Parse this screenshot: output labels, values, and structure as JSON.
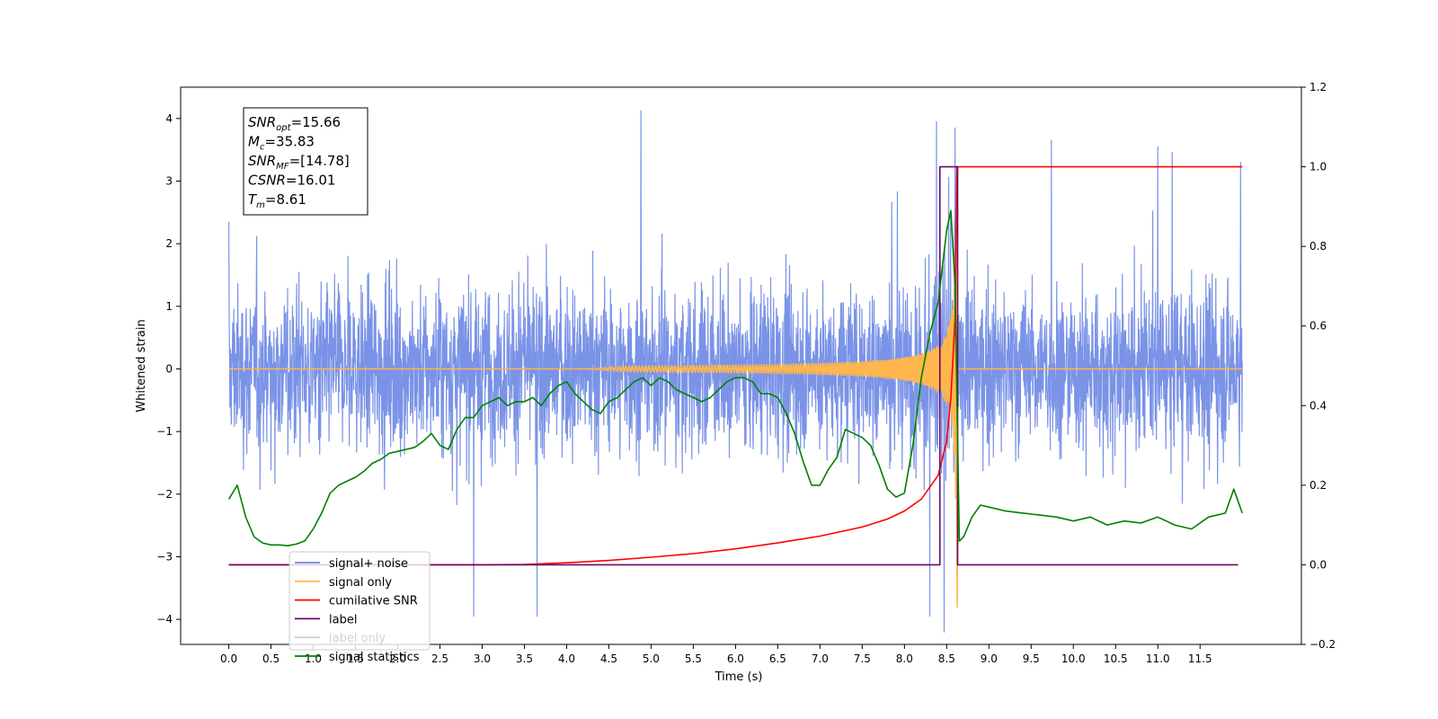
{
  "chart_data": {
    "type": "line",
    "xlabel": "Time (s)",
    "ylabel": "Whitened strain",
    "ylabel_right": "",
    "xlim": [
      -0.57,
      12.7
    ],
    "ylim_left": [
      -4.4,
      4.5
    ],
    "ylim_right": [
      -0.2,
      1.2
    ],
    "xticks": [
      "0.0",
      "0.5",
      "1.0",
      "1.5",
      "2.0",
      "2.5",
      "3.0",
      "3.5",
      "4.0",
      "4.5",
      "5.0",
      "5.5",
      "6.0",
      "6.5",
      "7.0",
      "7.5",
      "8.0",
      "8.5",
      "9.0",
      "9.5",
      "10.0",
      "10.5",
      "11.0",
      "11.5"
    ],
    "yticks_left": [
      "−4",
      "−3",
      "−2",
      "−1",
      "0",
      "1",
      "2",
      "3",
      "4"
    ],
    "yticks_right": [
      "−0.2",
      "0.0",
      "0.2",
      "0.4",
      "0.6",
      "0.8",
      "1.0",
      "1.2"
    ],
    "grid": false,
    "legend_position": "lower-left",
    "info_box": {
      "lines": [
        {
          "var": "SNR",
          "sub": "opt",
          "value": "=15.66"
        },
        {
          "var": "M",
          "sub": "c",
          "value": "=35.83"
        },
        {
          "var": "SNR",
          "sub": "MF",
          "value": "=[14.78]"
        },
        {
          "var": "CSNR",
          "sub": "",
          "value": "=16.01"
        },
        {
          "var": "T",
          "sub": "m",
          "value": "=8.61"
        }
      ]
    },
    "legend": [
      {
        "label": "signal+ noise",
        "color": "#6b87e4"
      },
      {
        "label": "signal only",
        "color": "#ffb74d"
      },
      {
        "label": "cumilative SNR",
        "color": "#ff0000"
      },
      {
        "label": "label",
        "color": "#6a0a6a"
      },
      {
        "label": "label only",
        "color": "#000000",
        "faded": true
      },
      {
        "label": "signal statistics",
        "color": "#008000"
      }
    ],
    "series": [
      {
        "name": "signal+ noise",
        "axis": "left",
        "color": "#6b87e4",
        "x_range": [
          0,
          12
        ],
        "envelope_typical": 1.7,
        "peaks": [
          {
            "x": 4.88,
            "y": 4.12
          },
          {
            "x": 8.38,
            "y": 3.95
          },
          {
            "x": 8.6,
            "y": 3.85
          },
          {
            "x": 9.74,
            "y": 3.65
          },
          {
            "x": 11.98,
            "y": 3.3
          },
          {
            "x": 11.0,
            "y": 3.55
          },
          {
            "x": 2.9,
            "y": -3.95
          },
          {
            "x": 3.65,
            "y": -3.95
          },
          {
            "x": 8.3,
            "y": -3.95
          },
          {
            "x": 8.47,
            "y": -4.2
          },
          {
            "x": 0.0,
            "y": 2.35
          }
        ]
      },
      {
        "name": "signal only",
        "axis": "left",
        "color": "#ffb74d",
        "type": "chirp",
        "t_start": 4.2,
        "t_merge": 8.62,
        "peak_amplitude": 3.55
      },
      {
        "name": "cumilative SNR",
        "axis": "right",
        "color": "#ff0000",
        "x": [
          0.0,
          3.0,
          3.5,
          4.0,
          4.5,
          5.0,
          5.5,
          6.0,
          6.5,
          7.0,
          7.5,
          7.8,
          8.0,
          8.2,
          8.4,
          8.5,
          8.55,
          8.6,
          8.62,
          12.0
        ],
        "y": [
          0.0,
          0.0,
          0.001,
          0.005,
          0.011,
          0.019,
          0.028,
          0.04,
          0.055,
          0.072,
          0.095,
          0.115,
          0.135,
          0.165,
          0.225,
          0.31,
          0.42,
          0.62,
          1.0,
          1.0
        ]
      },
      {
        "name": "label",
        "axis": "right",
        "color": "#6a0a6a",
        "x": [
          0.0,
          8.42,
          8.42,
          8.63,
          8.63,
          11.95
        ],
        "y": [
          0.0,
          0.0,
          1.0,
          1.0,
          0.0,
          0.0
        ]
      },
      {
        "name": "signal statistics",
        "axis": "right",
        "color": "#008000",
        "x": [
          0.0,
          0.1,
          0.2,
          0.3,
          0.4,
          0.5,
          0.6,
          0.7,
          0.8,
          0.9,
          1.0,
          1.1,
          1.2,
          1.3,
          1.4,
          1.5,
          1.6,
          1.7,
          1.8,
          1.9,
          2.0,
          2.1,
          2.2,
          2.3,
          2.4,
          2.5,
          2.6,
          2.7,
          2.8,
          2.9,
          3.0,
          3.1,
          3.2,
          3.3,
          3.4,
          3.5,
          3.6,
          3.7,
          3.8,
          3.9,
          4.0,
          4.1,
          4.2,
          4.3,
          4.4,
          4.5,
          4.6,
          4.7,
          4.8,
          4.9,
          5.0,
          5.1,
          5.2,
          5.3,
          5.4,
          5.5,
          5.6,
          5.7,
          5.8,
          5.9,
          6.0,
          6.1,
          6.2,
          6.3,
          6.4,
          6.5,
          6.6,
          6.7,
          6.8,
          6.9,
          7.0,
          7.1,
          7.2,
          7.3,
          7.4,
          7.5,
          7.6,
          7.7,
          7.8,
          7.9,
          8.0,
          8.1,
          8.2,
          8.3,
          8.4,
          8.5,
          8.55,
          8.6,
          8.65,
          8.7,
          8.8,
          8.9,
          9.0,
          9.2,
          9.4,
          9.6,
          9.8,
          10.0,
          10.2,
          10.4,
          10.6,
          10.8,
          11.0,
          11.2,
          11.4,
          11.6,
          11.8,
          11.9,
          12.0
        ],
        "y": [
          0.165,
          0.2,
          0.12,
          0.07,
          0.055,
          0.05,
          0.05,
          0.048,
          0.052,
          0.06,
          0.09,
          0.13,
          0.18,
          0.2,
          0.21,
          0.22,
          0.235,
          0.255,
          0.265,
          0.28,
          0.285,
          0.29,
          0.295,
          0.31,
          0.33,
          0.3,
          0.29,
          0.34,
          0.37,
          0.37,
          0.4,
          0.41,
          0.42,
          0.4,
          0.41,
          0.41,
          0.42,
          0.4,
          0.43,
          0.45,
          0.46,
          0.43,
          0.41,
          0.39,
          0.38,
          0.41,
          0.42,
          0.44,
          0.46,
          0.47,
          0.45,
          0.47,
          0.46,
          0.44,
          0.43,
          0.42,
          0.41,
          0.42,
          0.44,
          0.46,
          0.47,
          0.47,
          0.46,
          0.43,
          0.43,
          0.42,
          0.38,
          0.33,
          0.26,
          0.2,
          0.2,
          0.24,
          0.27,
          0.34,
          0.33,
          0.32,
          0.3,
          0.25,
          0.19,
          0.17,
          0.18,
          0.3,
          0.47,
          0.58,
          0.66,
          0.84,
          0.89,
          0.7,
          0.06,
          0.07,
          0.12,
          0.15,
          0.145,
          0.135,
          0.13,
          0.125,
          0.12,
          0.11,
          0.12,
          0.1,
          0.11,
          0.105,
          0.12,
          0.1,
          0.09,
          0.12,
          0.13,
          0.19,
          0.13
        ]
      }
    ]
  }
}
